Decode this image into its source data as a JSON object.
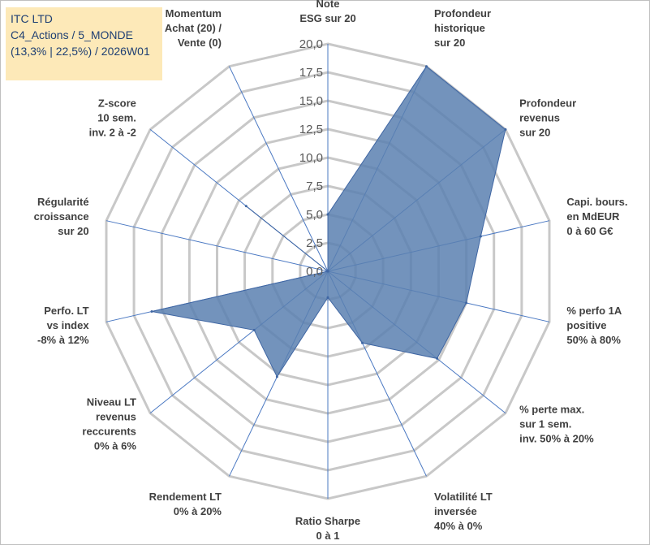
{
  "title_box": {
    "line1": "ITC LTD",
    "line2": "C4_Actions / 5_MONDE",
    "line3": "(13,3% | 22,5%) / 2026W01"
  },
  "colors": {
    "fill": "#5b80b0",
    "stroke": "#3f66a3",
    "ring": "#c8c8c8",
    "spoke": "#4a78c2",
    "title_bg": "#fde9b8",
    "title_text": "#1f3f73"
  },
  "chart_data": {
    "type": "radar",
    "r_min": 0,
    "r_max": 20,
    "ring_step": 2.5,
    "tick_labels": [
      "0,0",
      "2,5",
      "5,0",
      "7,5",
      "10,0",
      "12,5",
      "15,0",
      "17,5",
      "20,0"
    ],
    "axes": [
      {
        "lines": [
          "Note",
          "ESG sur 20"
        ],
        "value": 5.0
      },
      {
        "lines": [
          "Profondeur",
          "historique",
          "sur 20"
        ],
        "value": 20.0
      },
      {
        "lines": [
          "Profondeur",
          "revenus",
          "sur 20"
        ],
        "value": 20.0
      },
      {
        "lines": [
          "Capi. bours.",
          "en MdEUR",
          "0 à 60 G€"
        ],
        "value": 13.8
      },
      {
        "lines": [
          "% perfo 1A",
          "positive",
          "50% à 80%"
        ],
        "value": 12.5
      },
      {
        "lines": [
          "% perte max.",
          "sur 1 sem.",
          "inv. 50% à 20%"
        ],
        "value": 12.3
      },
      {
        "lines": [
          "Volatilité LT",
          "inversée",
          "40% à 0%"
        ],
        "value": 7.0
      },
      {
        "lines": [
          "Ratio Sharpe",
          "0 à 1"
        ],
        "value": 2.3
      },
      {
        "lines": [
          "Rendement LT",
          "0% à 20%"
        ],
        "value": 10.3
      },
      {
        "lines": [
          "Niveau LT",
          "revenus",
          "reccurents",
          "0% à 6%"
        ],
        "value": 8.3
      },
      {
        "lines": [
          "Perfo. LT",
          "vs index",
          "-8% à 12%"
        ],
        "value": 15.9
      },
      {
        "lines": [
          "Régularité",
          "croissance",
          "sur 20"
        ],
        "value": 0.0
      },
      {
        "lines": [
          "Z-score",
          "10 sem.",
          "inv. 2 à -2"
        ],
        "value": 9.2
      },
      {
        "lines": [
          "Momentum",
          "Achat (20) /",
          "Vente (0)"
        ],
        "value": 0.0
      }
    ]
  }
}
